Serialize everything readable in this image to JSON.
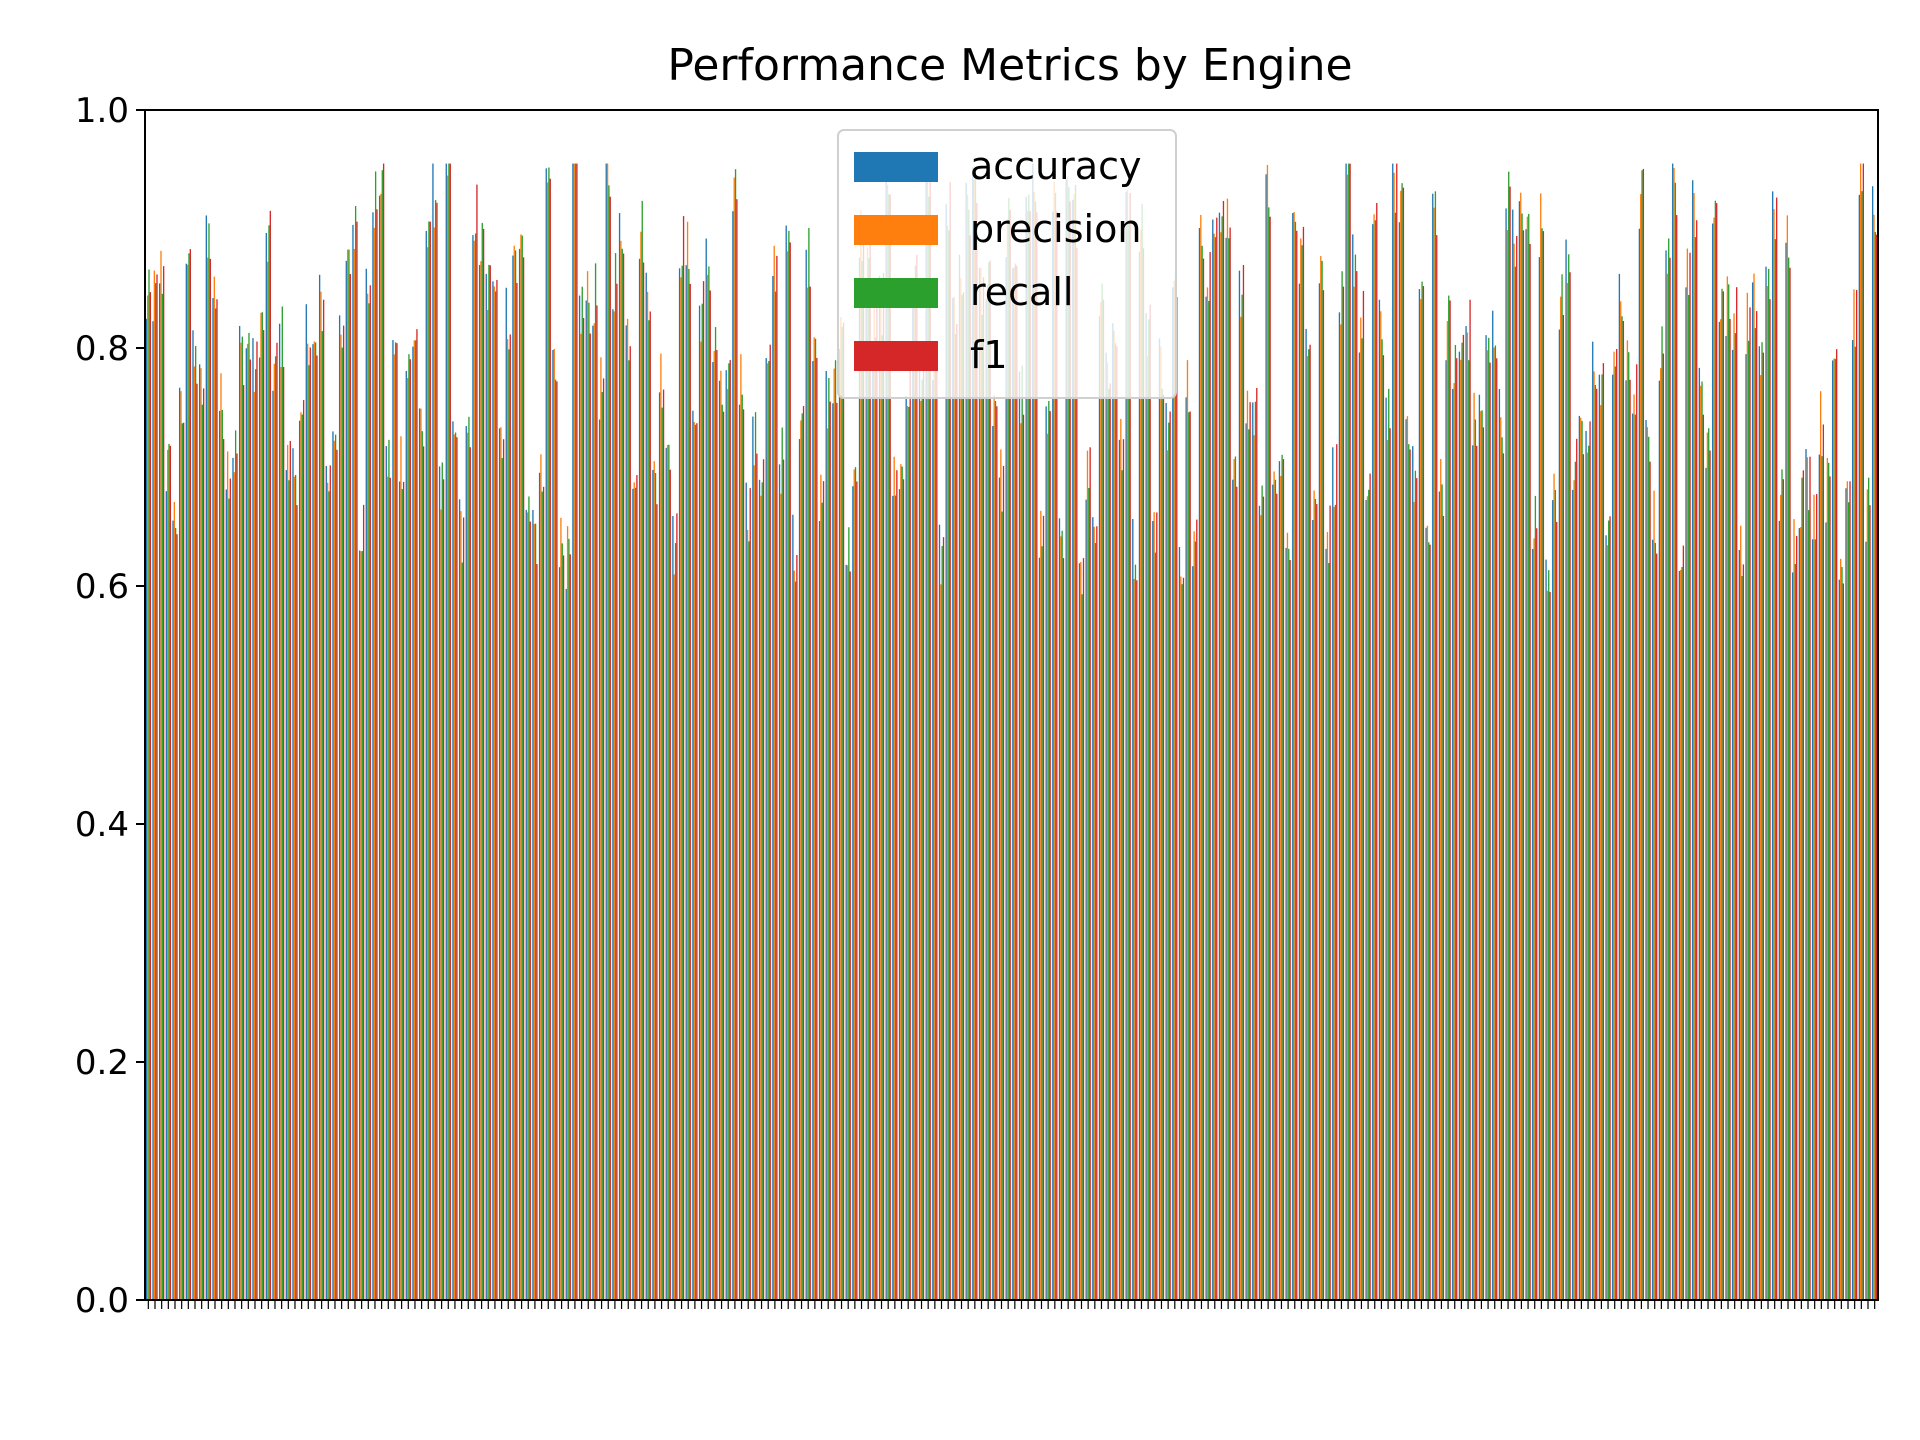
{
  "chart_data": {
    "type": "bar",
    "title": "Performance Metrics by Engine",
    "xlabel": "",
    "ylabel": "",
    "ylim": [
      0,
      1.0
    ],
    "yticks": [
      "0.0",
      "0.2",
      "0.4",
      "0.6",
      "0.8",
      "1.0"
    ],
    "grid": false,
    "legend_position": "top-center",
    "x_tick_rotation": "vertical",
    "category_count": 260,
    "series": [
      {
        "name": "accuracy",
        "color": "#1f77b4"
      },
      {
        "name": "precision",
        "color": "#ff7f0e"
      },
      {
        "name": "recall",
        "color": "#2ca02c"
      },
      {
        "name": "f1",
        "color": "#d62728"
      }
    ]
  }
}
